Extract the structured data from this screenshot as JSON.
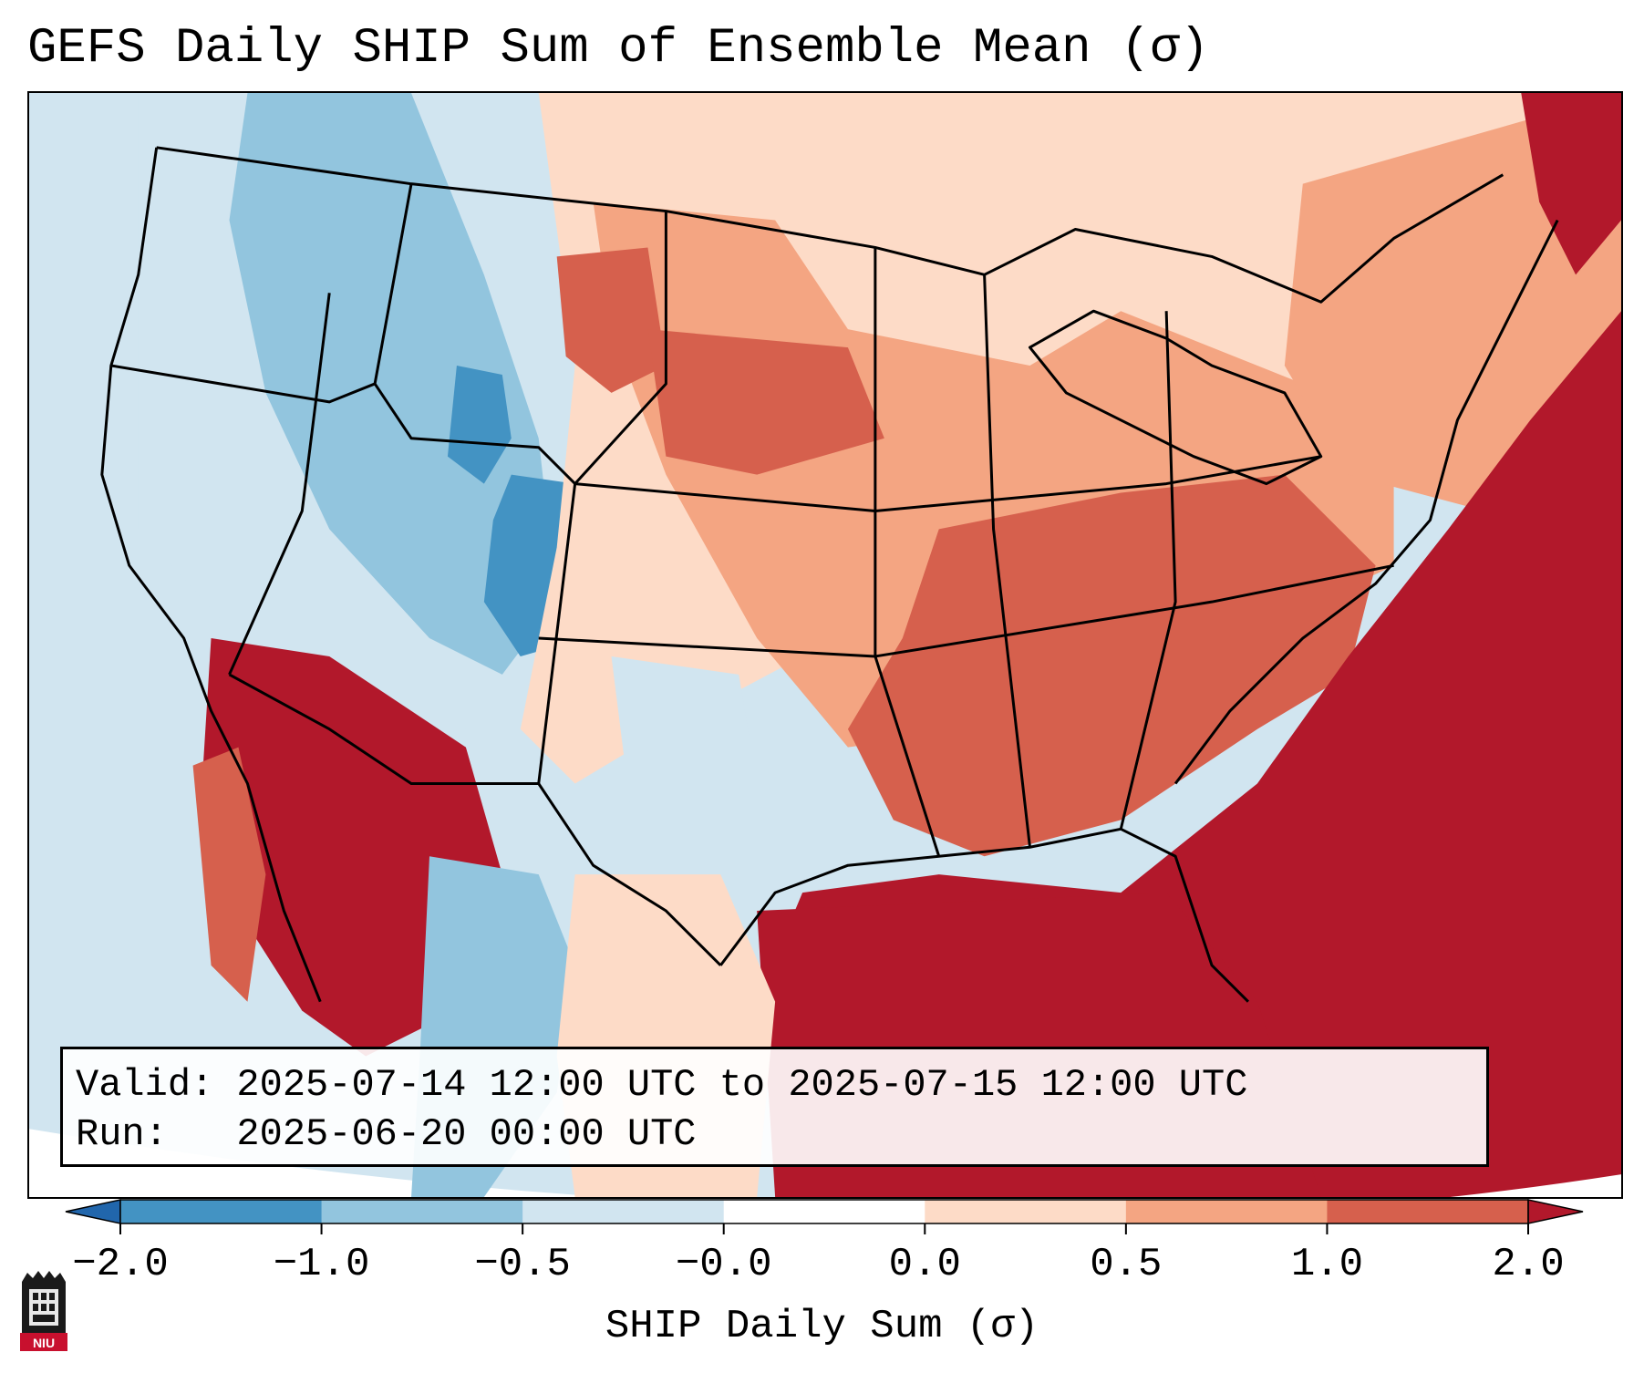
{
  "title": "GEFS Daily SHIP Sum of Ensemble Mean (σ)",
  "info": {
    "valid_line": "Valid: 2025-07-14 12:00 UTC to 2025-07-15 12:00 UTC",
    "run_line": "Run:   2025-06-20 00:00 UTC"
  },
  "colorbar": {
    "label": "SHIP Daily Sum (σ)",
    "ticks": [
      "−2.0",
      "−1.0",
      "−0.5",
      "−0.0",
      "0.0",
      "0.5",
      "1.0",
      "2.0"
    ],
    "colors": [
      "#2166ac",
      "#4393c3",
      "#92c5de",
      "#d1e5f0",
      "#ffffff",
      "#fddbc7",
      "#f4a582",
      "#d6604d",
      "#b2182b"
    ],
    "extend": "both"
  },
  "logo": {
    "text": "NIU",
    "icon": "niu-logo-icon"
  },
  "map": {
    "projection": "Lambert conformal, CONUS",
    "land_outline_color": "#000000",
    "dominant_regions": [
      {
        "region": "Gulf of Mexico / Western Atlantic",
        "level": "> 2.0"
      },
      {
        "region": "Southeast US",
        "level": "1.0 to 2.0"
      },
      {
        "region": "Central Plains",
        "level": "0.5 to 1.0"
      },
      {
        "region": "Northern Rockies / Colorado",
        "level": "-1.0 to -0.5"
      },
      {
        "region": "Southwest / Baja",
        "level": "> 2.0"
      },
      {
        "region": "Pacific Northwest",
        "level": "-0.5 to -0.0"
      }
    ]
  }
}
